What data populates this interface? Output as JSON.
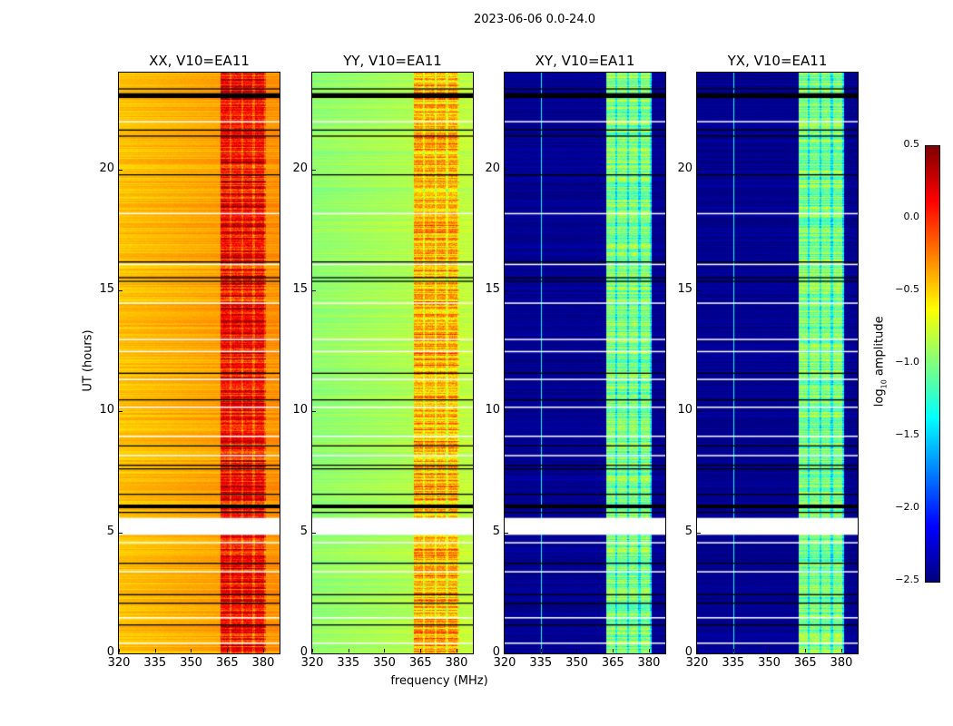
{
  "suptitle": "2023-06-06 0.0-24.0",
  "chart_data": {
    "type": "heatmap",
    "title": "2023-06-06 0.0-24.0",
    "xlabel": "frequency (MHz)",
    "ylabel": "UT (hours)",
    "xlim": [
      320,
      386.8
    ],
    "ylim": [
      0,
      24
    ],
    "xticks": [
      "320",
      "335",
      "350",
      "365",
      "380"
    ],
    "yticks": [
      "0",
      "5",
      "10",
      "15",
      "20"
    ],
    "colorbar": {
      "label_main": "log",
      "label_sub": "10",
      "label_rest": " amplitude",
      "range": [
        -2.5,
        0.5
      ],
      "ticks": [
        "0.5",
        "0.0",
        "−0.5",
        "−1.0",
        "−1.5",
        "−2.0",
        "−2.5"
      ],
      "colormap": "jet"
    },
    "rfi_band_mhz": [
      362,
      381
    ],
    "no_data_hours": [
      4.9,
      5.6
    ],
    "flagged_hours": [
      23.35,
      23.05,
      23.0,
      21.65,
      21.4,
      19.8,
      16.2,
      15.55,
      15.4,
      11.6,
      10.5,
      8.6,
      7.8,
      7.65,
      6.6,
      6.15,
      6.05,
      5.85,
      3.75,
      2.45,
      2.1,
      1.2
    ],
    "panels": [
      {
        "title": "XX, V10=EA11",
        "background_level": -0.3,
        "band_level": 0.05
      },
      {
        "title": "YY, V10=EA11",
        "background_level": -0.8,
        "band_level": -0.45
      },
      {
        "title": "XY, V10=EA11",
        "background_level": -2.45,
        "band_level": -1.0
      },
      {
        "title": "YX, V10=EA11",
        "background_level": -2.45,
        "band_level": -1.0
      }
    ]
  }
}
